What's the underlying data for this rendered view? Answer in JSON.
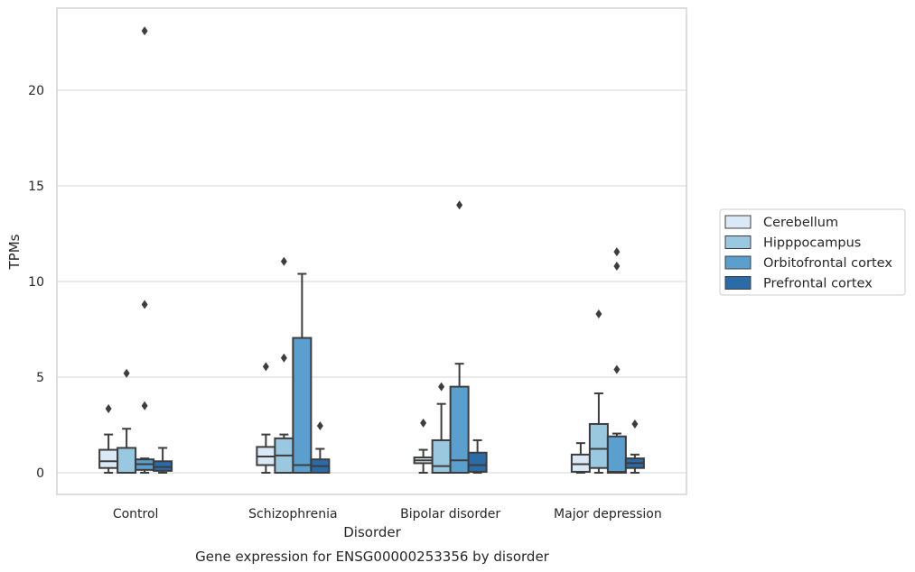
{
  "chart_data": {
    "type": "box",
    "title": "Gene expression for ENSG00000253356 by disorder",
    "xlabel": "Disorder",
    "ylabel": "TPMs",
    "ylim": [
      -1.1,
      24.2
    ],
    "yticks": [
      0,
      5,
      10,
      15,
      20
    ],
    "grid": true,
    "legend_position": "right",
    "categories": [
      "Control",
      "Schizophrenia",
      "Bipolar disorder",
      "Major depression"
    ],
    "series": [
      {
        "name": "Cerebellum",
        "color": "#dbe9f6",
        "boxes": [
          {
            "whislo": 0.0,
            "q1": 0.25,
            "med": 0.6,
            "q3": 1.2,
            "whishi": 2.0,
            "fliers": [
              3.35
            ]
          },
          {
            "whislo": 0.0,
            "q1": 0.4,
            "med": 0.85,
            "q3": 1.35,
            "whishi": 2.0,
            "fliers": [
              5.55
            ]
          },
          {
            "whislo": 0.0,
            "q1": 0.5,
            "med": 0.65,
            "q3": 0.8,
            "whishi": 1.2,
            "fliers": [
              2.6
            ]
          },
          {
            "whislo": 0.0,
            "q1": 0.05,
            "med": 0.45,
            "q3": 0.95,
            "whishi": 1.55,
            "fliers": []
          }
        ]
      },
      {
        "name": "Hipppocampus",
        "color": "#9ac8e0",
        "boxes": [
          {
            "whislo": 0.0,
            "q1": 0.0,
            "med": 0.0,
            "q3": 1.3,
            "whishi": 2.3,
            "fliers": [
              5.2
            ]
          },
          {
            "whislo": 0.0,
            "q1": 0.0,
            "med": 0.9,
            "q3": 1.8,
            "whishi": 2.0,
            "fliers": [
              6.0,
              11.05
            ]
          },
          {
            "whislo": 0.0,
            "q1": 0.0,
            "med": 0.35,
            "q3": 1.7,
            "whishi": 3.6,
            "fliers": [
              4.5
            ]
          },
          {
            "whislo": 0.0,
            "q1": 0.25,
            "med": 1.25,
            "q3": 2.55,
            "whishi": 4.15,
            "fliers": [
              8.3
            ]
          }
        ]
      },
      {
        "name": "Orbitofrontal cortex",
        "color": "#5a9fce",
        "boxes": [
          {
            "whislo": 0.0,
            "q1": 0.15,
            "med": 0.45,
            "q3": 0.7,
            "whishi": 0.75,
            "fliers": [
              3.5,
              8.8,
              23.1
            ]
          },
          {
            "whislo": 0.0,
            "q1": 0.0,
            "med": 0.4,
            "q3": 7.05,
            "whishi": 10.4,
            "fliers": []
          },
          {
            "whislo": 0.0,
            "q1": 0.0,
            "med": 0.65,
            "q3": 4.5,
            "whishi": 5.7,
            "fliers": [
              14.0
            ]
          },
          {
            "whislo": 0.0,
            "q1": 0.0,
            "med": 0.05,
            "q3": 1.9,
            "whishi": 2.05,
            "fliers": [
              5.4,
              10.8,
              11.55
            ]
          }
        ]
      },
      {
        "name": "Prefrontal cortex",
        "color": "#2b6ba8",
        "boxes": [
          {
            "whislo": 0.0,
            "q1": 0.1,
            "med": 0.3,
            "q3": 0.6,
            "whishi": 1.3,
            "fliers": []
          },
          {
            "whislo": 0.0,
            "q1": 0.0,
            "med": 0.35,
            "q3": 0.7,
            "whishi": 1.25,
            "fliers": [
              2.45
            ]
          },
          {
            "whislo": 0.0,
            "q1": 0.05,
            "med": 0.4,
            "q3": 1.05,
            "whishi": 1.7,
            "fliers": []
          },
          {
            "whislo": 0.0,
            "q1": 0.25,
            "med": 0.5,
            "q3": 0.75,
            "whishi": 0.95,
            "fliers": [
              2.55
            ]
          }
        ]
      }
    ]
  }
}
